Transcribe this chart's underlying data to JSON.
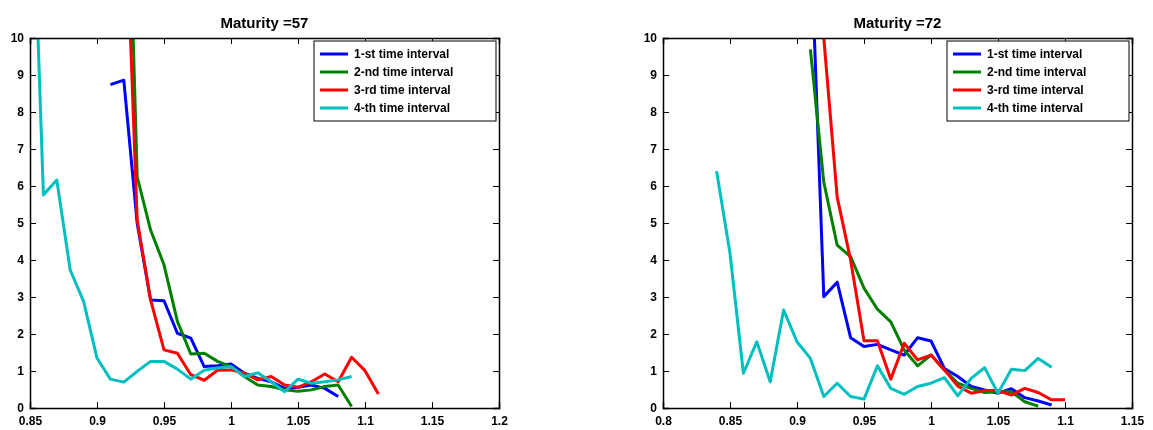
{
  "chart_data": [
    {
      "type": "line",
      "title": "Maturity =57",
      "xlim": [
        0.85,
        1.2
      ],
      "xticks": [
        0.85,
        0.9,
        0.95,
        1,
        1.05,
        1.1,
        1.15,
        1.2
      ],
      "ylim": [
        0,
        10
      ],
      "yticks": [
        0,
        1,
        2,
        3,
        4,
        5,
        6,
        7,
        8,
        9,
        10
      ],
      "grid": false,
      "legend": "top right",
      "line_style": "solid",
      "series": [
        {
          "name": "1-st time interval",
          "color": "#0000ff",
          "x": [
            0.91,
            0.92,
            0.93,
            0.94,
            0.95,
            0.96,
            0.97,
            0.98,
            0.99,
            1.0,
            1.01,
            1.02,
            1.03,
            1.04,
            1.05,
            1.06,
            1.07,
            1.08
          ],
          "values": [
            8.74,
            8.86,
            4.99,
            2.92,
            2.9,
            2.02,
            1.89,
            1.12,
            1.14,
            1.19,
            0.94,
            0.8,
            0.71,
            0.53,
            0.56,
            0.62,
            0.53,
            0.31
          ]
        },
        {
          "name": "2-nd time interval",
          "color": "#008000",
          "x": [
            0.927,
            0.93,
            0.94,
            0.95,
            0.96,
            0.97,
            0.98,
            0.99,
            1.0,
            1.01,
            1.02,
            1.03,
            1.04,
            1.05,
            1.06,
            1.07,
            1.08,
            1.09
          ],
          "values": [
            10,
            6.25,
            4.81,
            3.87,
            2.34,
            1.46,
            1.48,
            1.26,
            1.12,
            0.85,
            0.62,
            0.58,
            0.49,
            0.45,
            0.49,
            0.58,
            0.62,
            0.04
          ]
        },
        {
          "name": "3-rd time interval",
          "color": "#ff0000",
          "x": [
            0.925,
            0.93,
            0.94,
            0.95,
            0.96,
            0.97,
            0.98,
            0.99,
            1.0,
            1.01,
            1.02,
            1.03,
            1.04,
            1.05,
            1.06,
            1.07,
            1.08,
            1.09,
            1.1,
            1.11
          ],
          "values": [
            10,
            5.08,
            2.92,
            1.57,
            1.48,
            0.9,
            0.75,
            1.02,
            1.03,
            0.94,
            0.76,
            0.85,
            0.62,
            0.56,
            0.71,
            0.92,
            0.71,
            1.37,
            1.01,
            0.38
          ]
        },
        {
          "name": "4-th time interval",
          "color": "#00bfbf",
          "x": [
            0.856,
            0.86,
            0.87,
            0.88,
            0.89,
            0.9,
            0.91,
            0.92,
            0.93,
            0.94,
            0.95,
            0.96,
            0.97,
            0.98,
            0.99,
            1.0,
            1.01,
            1.02,
            1.03,
            1.04,
            1.05,
            1.06,
            1.07,
            1.08,
            1.09
          ],
          "values": [
            10,
            5.76,
            6.16,
            3.73,
            2.88,
            1.35,
            0.78,
            0.7,
            0.99,
            1.26,
            1.26,
            1.05,
            0.78,
            1.02,
            1.08,
            1.12,
            0.85,
            0.95,
            0.71,
            0.44,
            0.78,
            0.67,
            0.71,
            0.76,
            0.85
          ]
        }
      ]
    },
    {
      "type": "line",
      "title": "Maturity =72",
      "xlim": [
        0.8,
        1.15
      ],
      "xticks": [
        0.8,
        0.85,
        0.9,
        0.95,
        1,
        1.05,
        1.1,
        1.15
      ],
      "ylim": [
        0,
        10
      ],
      "yticks": [
        0,
        1,
        2,
        3,
        4,
        5,
        6,
        7,
        8,
        9,
        10
      ],
      "grid": false,
      "legend": "top right",
      "line_style": "solid",
      "series": [
        {
          "name": "1-st time interval",
          "color": "#0000ff",
          "x": [
            0.913,
            0.92,
            0.93,
            0.94,
            0.95,
            0.96,
            0.97,
            0.98,
            0.99,
            1.0,
            1.01,
            1.02,
            1.03,
            1.04,
            1.05,
            1.06,
            1.07,
            1.08,
            1.09
          ],
          "values": [
            10,
            3.01,
            3.4,
            1.9,
            1.66,
            1.72,
            1.57,
            1.43,
            1.9,
            1.81,
            1.07,
            0.85,
            0.58,
            0.49,
            0.4,
            0.52,
            0.28,
            0.19,
            0.08
          ]
        },
        {
          "name": "2-nd time interval",
          "color": "#008000",
          "x": [
            0.91,
            0.92,
            0.93,
            0.94,
            0.95,
            0.96,
            0.97,
            0.98,
            0.99,
            1.0,
            1.01,
            1.02,
            1.03,
            1.04,
            1.05,
            1.06,
            1.07,
            1.08
          ],
          "values": [
            9.69,
            6.1,
            4.4,
            4.09,
            3.24,
            2.67,
            2.33,
            1.57,
            1.14,
            1.43,
            1.03,
            0.67,
            0.53,
            0.42,
            0.44,
            0.44,
            0.17,
            0.05
          ]
        },
        {
          "name": "3-rd time interval",
          "color": "#ff0000",
          "x": [
            0.92,
            0.93,
            0.94,
            0.95,
            0.96,
            0.97,
            0.98,
            0.99,
            1.0,
            1.01,
            1.02,
            1.03,
            1.04,
            1.05,
            1.06,
            1.07,
            1.08,
            1.09,
            1.1
          ],
          "values": [
            10,
            5.7,
            4.0,
            1.82,
            1.82,
            0.78,
            1.75,
            1.3,
            1.43,
            1.03,
            0.59,
            0.4,
            0.47,
            0.47,
            0.35,
            0.53,
            0.42,
            0.22,
            0.22
          ]
        },
        {
          "name": "4-th time interval",
          "color": "#00bfbf",
          "x": [
            0.84,
            0.85,
            0.86,
            0.87,
            0.88,
            0.89,
            0.9,
            0.91,
            0.92,
            0.93,
            0.94,
            0.95,
            0.96,
            0.97,
            0.98,
            0.99,
            1.0,
            1.01,
            1.02,
            1.03,
            1.04,
            1.05,
            1.06,
            1.07,
            1.08,
            1.09
          ],
          "values": [
            6.4,
            4.18,
            0.94,
            1.79,
            0.71,
            2.65,
            1.79,
            1.34,
            0.31,
            0.67,
            0.31,
            0.24,
            1.14,
            0.53,
            0.37,
            0.58,
            0.67,
            0.82,
            0.33,
            0.8,
            1.09,
            0.4,
            1.05,
            1.01,
            1.34,
            1.1
          ]
        }
      ]
    }
  ]
}
